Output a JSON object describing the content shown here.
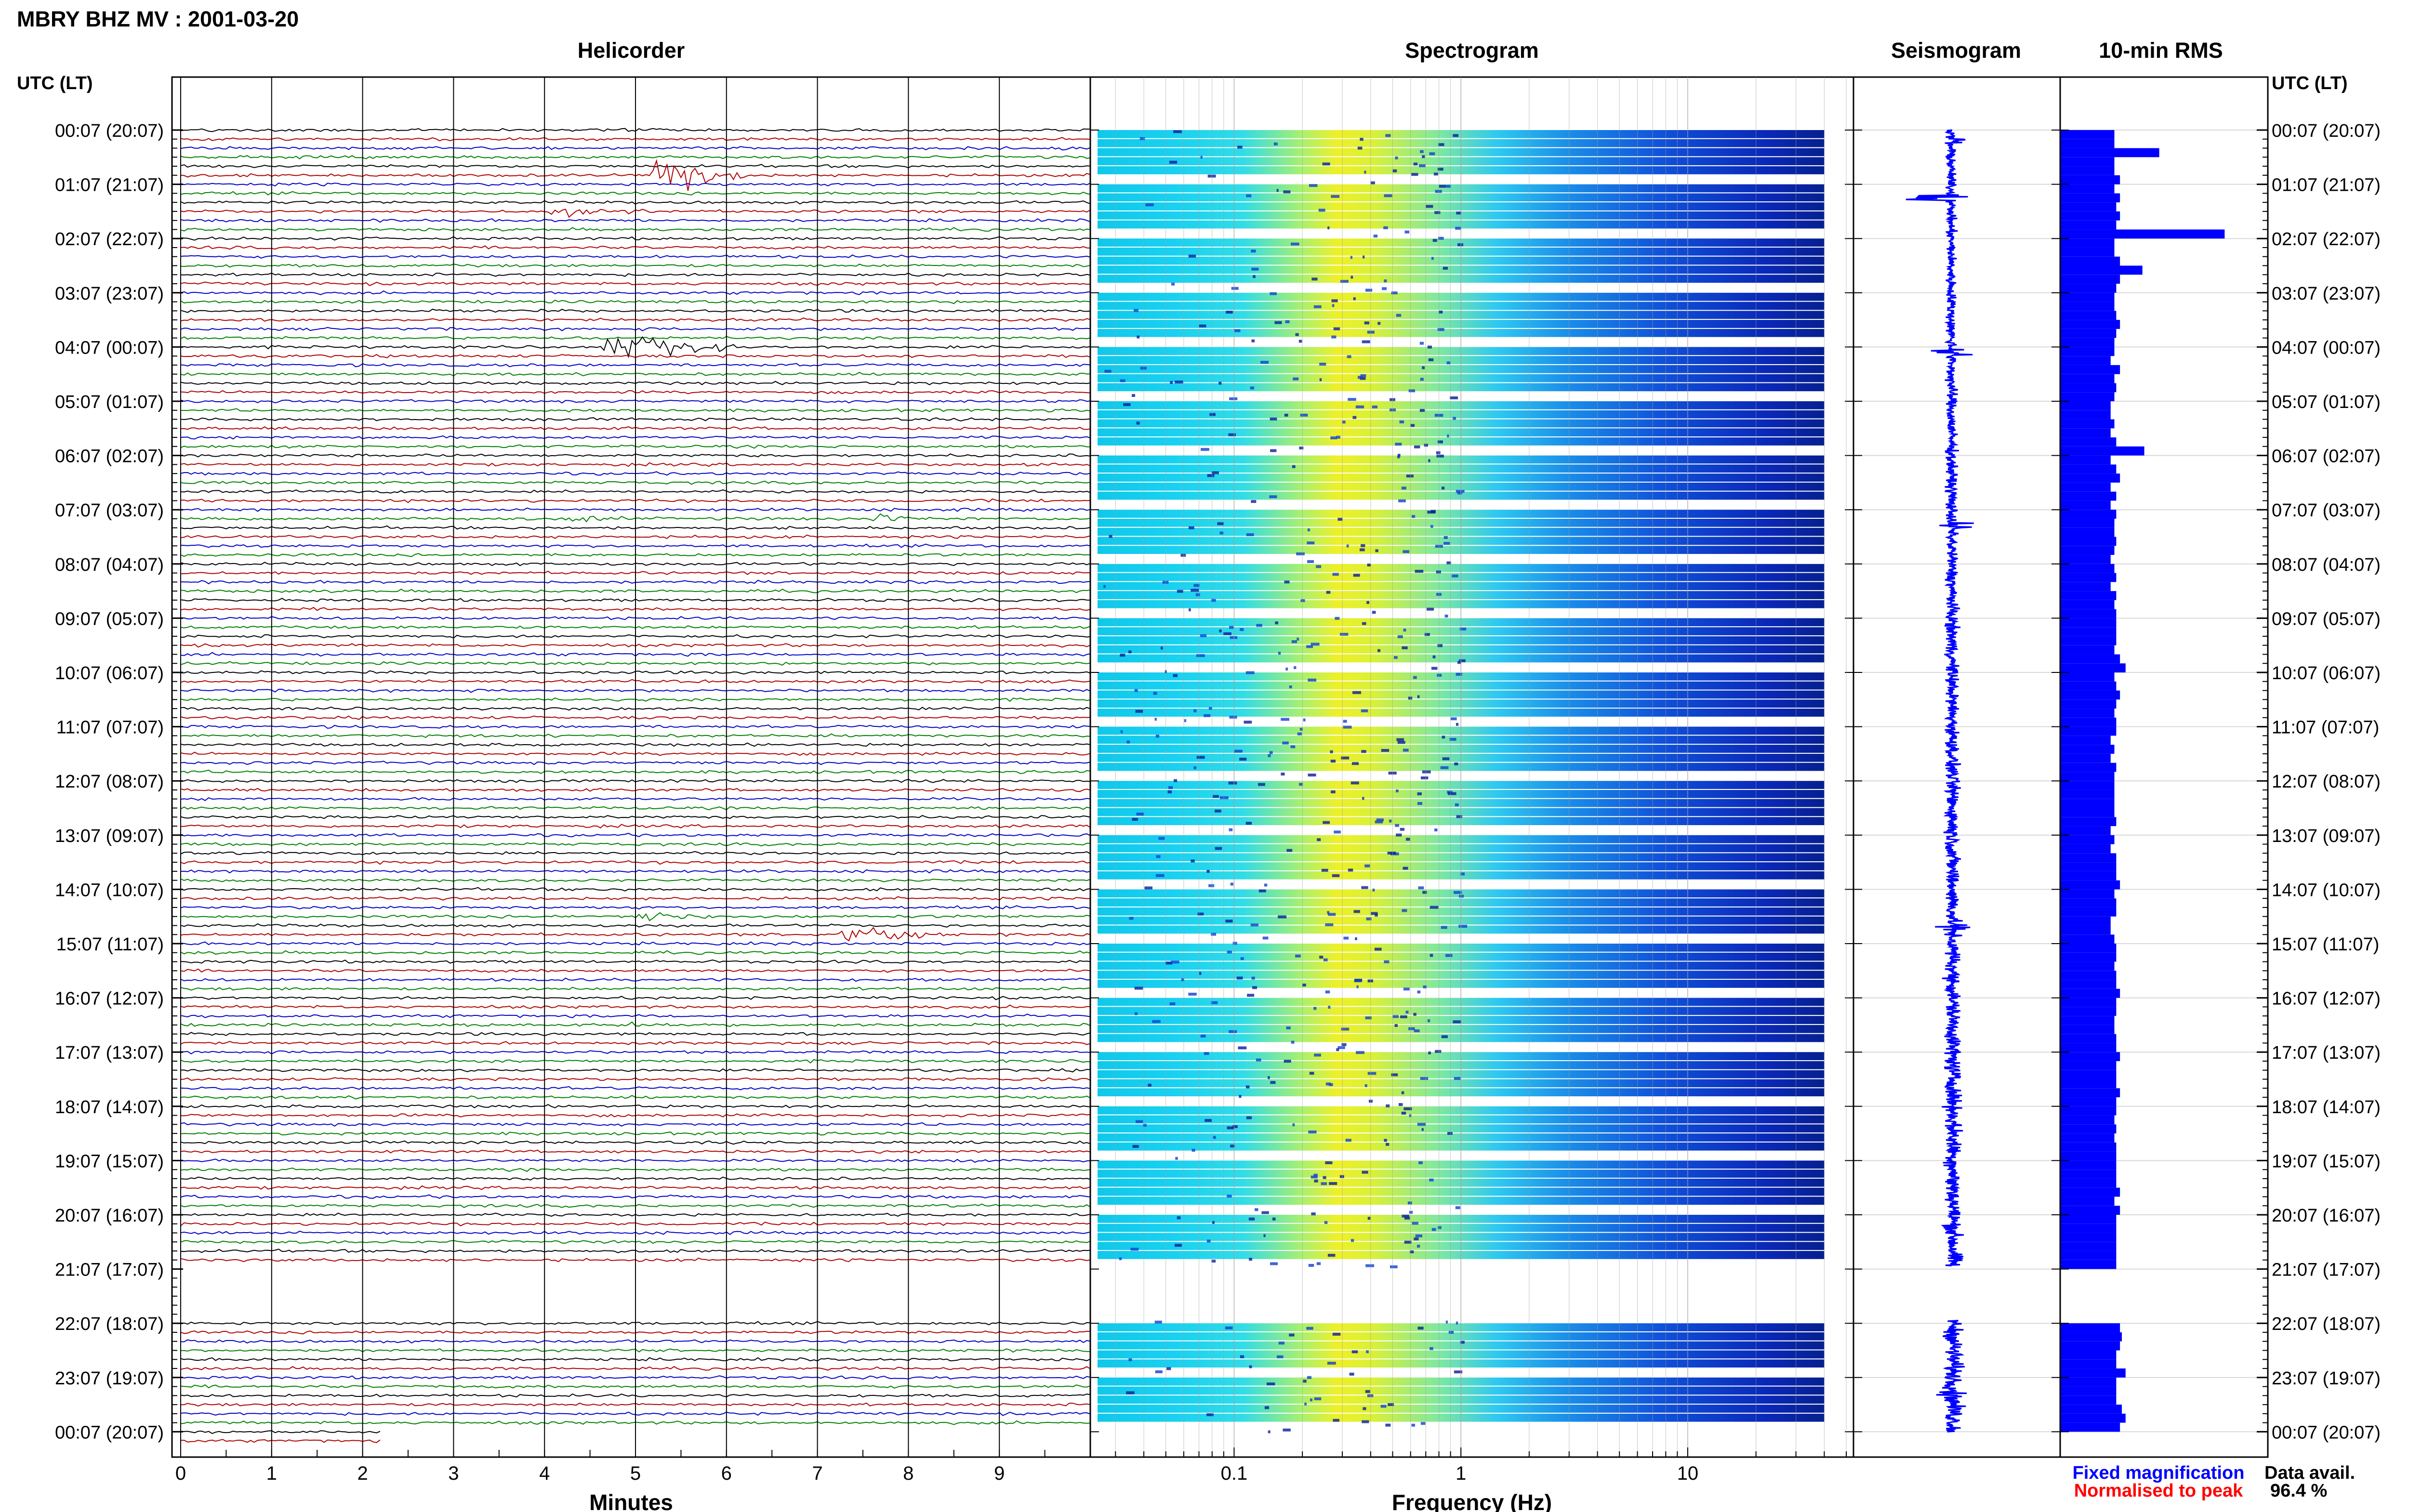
{
  "title": "MBRY BHZ MV : 2001-03-20",
  "panels": {
    "helicorder": "Helicorder",
    "spectrogram": "Spectrogram",
    "seismogram": "Seismogram",
    "rms": "10-min RMS"
  },
  "axis_header_left": "UTC (LT)",
  "axis_header_right": "UTC (LT)",
  "xlabel_helicorder": "Minutes",
  "xlabel_spectrogram": "Frequency (Hz)",
  "legend": {
    "fixed": "Fixed magnification",
    "normalised": "Normalised to peak"
  },
  "data_avail": {
    "label": "Data avail.",
    "value": "96.4 %"
  },
  "colors": {
    "trace_cycle": [
      "#000000",
      "#b00000",
      "#0000c8",
      "#008000"
    ],
    "legend_fixed": "#0000ff",
    "legend_normalised": "#ff0000",
    "bar": "#0000ff",
    "seismogram": "#0000ff",
    "spec_low": "#00107a",
    "spec_mid": "#1fd6f0",
    "spec_high": "#f0f020"
  },
  "chart_data": [
    {
      "type": "line",
      "panel": "Helicorder",
      "xlabel": "Minutes",
      "x_ticks": [
        0,
        1,
        2,
        3,
        4,
        5,
        6,
        7,
        8,
        9
      ],
      "xlim": [
        0,
        10
      ],
      "y_tick_labels": [
        "00:07 (20:07)",
        "01:07 (21:07)",
        "02:07 (22:07)",
        "03:07 (23:07)",
        "04:07 (00:07)",
        "05:07 (01:07)",
        "06:07 (02:07)",
        "07:07 (03:07)",
        "08:07 (04:07)",
        "09:07 (05:07)",
        "10:07 (06:07)",
        "11:07 (07:07)",
        "12:07 (08:07)",
        "13:07 (09:07)",
        "14:07 (10:07)",
        "15:07 (11:07)",
        "16:07 (12:07)",
        "17:07 (13:07)",
        "18:07 (14:07)",
        "19:07 (15:07)",
        "20:07 (16:07)",
        "21:07 (17:07)",
        "22:07 (18:07)",
        "23:07 (19:07)",
        "00:07 (20:07)"
      ],
      "traces_per_hour": 6,
      "gap_hours": [
        21
      ],
      "events": [
        {
          "hour": 0.8,
          "minute": 5.4,
          "amp": 10,
          "dur": 0.8
        },
        {
          "hour": 1.5,
          "minute": 4.3,
          "amp": 4,
          "dur": 0.9
        },
        {
          "hour": 4.0,
          "minute": 5.0,
          "amp": 7,
          "dur": 1.2
        },
        {
          "hour": 7.1,
          "minute": 4.4,
          "amp": 2.5,
          "dur": 0.6
        },
        {
          "hour": 7.1,
          "minute": 7.7,
          "amp": 3,
          "dur": 0.4
        },
        {
          "hour": 14.5,
          "minute": 5.2,
          "amp": 4,
          "dur": 0.8
        },
        {
          "hour": 14.8,
          "minute": 7.5,
          "amp": 5,
          "dur": 0.9
        },
        {
          "hour": 16.5,
          "minute": 5.0,
          "amp": 2,
          "dur": 0.7
        }
      ]
    },
    {
      "type": "heatmap",
      "panel": "Spectrogram",
      "xlabel": "Frequency (Hz)",
      "x_scale": "log",
      "x_tick_labels": [
        "0.1",
        "1",
        "10"
      ],
      "xlim": [
        0.025,
        50
      ],
      "peak_band_hz": [
        0.2,
        0.5
      ]
    },
    {
      "type": "line",
      "panel": "Seismogram",
      "events": [
        {
          "hour": 0.2,
          "amp": 0.6
        },
        {
          "hour": 1.25,
          "amp": 2.0
        },
        {
          "hour": 4.1,
          "amp": 0.8
        },
        {
          "hour": 7.3,
          "amp": 0.6
        },
        {
          "hour": 14.7,
          "amp": 0.6
        },
        {
          "hour": 23.3,
          "amp": 0.4
        }
      ]
    },
    {
      "type": "bar",
      "panel": "10-min RMS",
      "orientation": "horizontal",
      "description_unit": "relative",
      "values": [
        0.29,
        0.29,
        0.53,
        0.29,
        0.29,
        0.32,
        0.29,
        0.32,
        0.3,
        0.32,
        0.3,
        0.88,
        0.29,
        0.29,
        0.32,
        0.44,
        0.32,
        0.3,
        0.29,
        0.29,
        0.3,
        0.32,
        0.3,
        0.29,
        0.29,
        0.27,
        0.32,
        0.29,
        0.3,
        0.29,
        0.27,
        0.27,
        0.29,
        0.27,
        0.3,
        0.45,
        0.27,
        0.3,
        0.32,
        0.27,
        0.3,
        0.27,
        0.3,
        0.29,
        0.29,
        0.3,
        0.29,
        0.27,
        0.29,
        0.3,
        0.27,
        0.3,
        0.29,
        0.3,
        0.3,
        0.3,
        0.3,
        0.29,
        0.32,
        0.35,
        0.29,
        0.3,
        0.32,
        0.3,
        0.29,
        0.3,
        0.3,
        0.27,
        0.29,
        0.27,
        0.3,
        0.29,
        0.29,
        0.29,
        0.29,
        0.29,
        0.3,
        0.27,
        0.29,
        0.27,
        0.3,
        0.3,
        0.3,
        0.32,
        0.29,
        0.3,
        0.3,
        0.27,
        0.27,
        0.29,
        0.3,
        0.3,
        0.29,
        0.3,
        0.3,
        0.32,
        0.3,
        0.3,
        0.29,
        0.29,
        0.3,
        0.3,
        0.32,
        0.3,
        0.3,
        0.3,
        0.32,
        0.3,
        0.3,
        0.29,
        0.3,
        0.29,
        0.3,
        0.3,
        0.3,
        0.3,
        0.3,
        0.32,
        0.29,
        0.32,
        0.3,
        0.3,
        0.3,
        0.3,
        0.3,
        0.3,
        0.3,
        0.3,
        0.3,
        0.29,
        0.3,
        0.3,
        0.32,
        0.33,
        0.32,
        0.3,
        0.3,
        0.35,
        0.3,
        0.3,
        0.3,
        0.33,
        0.35,
        0.32,
        0.3,
        0.32,
        0.3,
        0.3,
        0.3,
        0.32,
        0.35,
        0.3,
        0.32,
        0.33,
        0.29,
        0.35,
        0.32,
        0.3,
        0.29,
        0.3,
        0.3,
        0.3,
        0.32,
        0.33,
        0.3,
        0.32,
        0.3,
        0.32,
        0.3,
        0.3,
        0.33,
        0.32,
        0.35,
        0.33,
        0.32,
        0.33,
        0.35,
        0.3,
        0.33,
        0.33,
        0.33,
        0.3,
        0.32,
        0.33,
        0.35,
        0.3,
        0.33,
        0.33,
        0.33,
        0.35,
        0.33,
        0.32,
        0.33,
        0.33,
        0.33,
        0.35,
        0.33,
        0.36,
        0.33,
        0.35,
        0.35,
        0.33,
        0.33,
        0.33,
        0.36,
        0.35,
        0.35,
        0.33,
        0.35,
        0.33,
        0.35,
        0.35,
        0.33,
        0.35,
        0.33,
        0.35,
        0.33,
        0.35,
        0.33,
        0.35,
        0.36,
        0.35,
        0.33,
        0.36,
        0.33,
        0.35,
        0.33,
        0.35,
        0.35,
        0.33,
        0.35,
        0.35,
        0.33,
        0.35,
        0.38,
        0.33,
        0.35,
        0.33,
        0.36,
        0.33,
        0.35,
        0.38,
        0.33,
        0.35,
        0.33,
        0.35,
        0.33,
        0.36,
        0.33,
        0.38,
        0.35,
        0.33,
        0.35,
        0.36,
        0.35,
        0.33,
        0.35,
        0.38,
        0.35,
        0.33,
        0.35,
        0.36,
        0.35,
        0.35,
        0.33,
        0.36,
        0.33,
        0.35,
        0.36,
        0.33,
        0.35,
        0.38,
        0.36,
        0.35,
        0.33,
        0.36,
        0.38,
        0.35,
        0.36,
        0.35,
        0.33,
        0.36,
        0.35,
        0.38,
        0.36,
        0.36,
        0.38,
        0.35,
        0.36,
        0.36,
        0.38,
        0.36,
        0.36,
        0.38,
        0.38,
        0.35,
        0.36,
        0.38,
        0.36,
        0.36,
        0.38,
        0.36,
        0.35,
        0.38,
        0.36,
        0.38,
        0.38,
        0.36,
        0.36,
        0.38,
        0.36,
        0.38,
        0.38,
        0.38,
        0.36,
        0.36,
        0.38,
        0.38,
        0.38,
        0.36,
        0.38,
        0.36,
        0.38,
        0.38,
        0.36,
        0.38,
        0.36,
        0.38,
        0.38,
        0.38,
        0.38,
        0.36,
        0.38,
        0.38,
        0.38,
        0.38,
        0.36,
        0.38,
        0.36,
        0.38,
        0.38,
        0.36,
        0.38,
        0.38,
        0.38,
        0.36,
        0.38,
        0.38,
        0.38,
        0.38,
        0.38,
        0.38,
        0.36,
        0.38,
        0.38,
        0.38,
        0.38,
        0.38,
        0.36,
        0.38,
        0.38,
        0.38,
        0.38,
        0.38,
        0.38,
        0.4,
        0.38,
        0.38,
        0.38,
        0.38,
        0.38,
        0.38,
        0.38,
        0.4,
        0.38,
        0.38,
        0.38,
        0.38,
        0.38,
        0.4,
        0.38,
        0.38,
        0.38,
        0.38,
        0.38,
        0.38,
        0.4,
        0.38,
        0.4,
        0.38,
        0.38,
        0.38,
        0.38,
        0.4,
        0.38,
        0.38,
        0.4,
        0.38,
        0.38,
        0.38,
        0.4,
        0.38,
        0.4,
        0.38,
        0.38,
        0.38,
        0.38,
        0.38,
        0.4,
        0.38,
        0.38,
        0.4,
        0.38,
        0.38,
        0.4,
        0.38
      ],
      "gap_hours": [
        21
      ]
    }
  ]
}
